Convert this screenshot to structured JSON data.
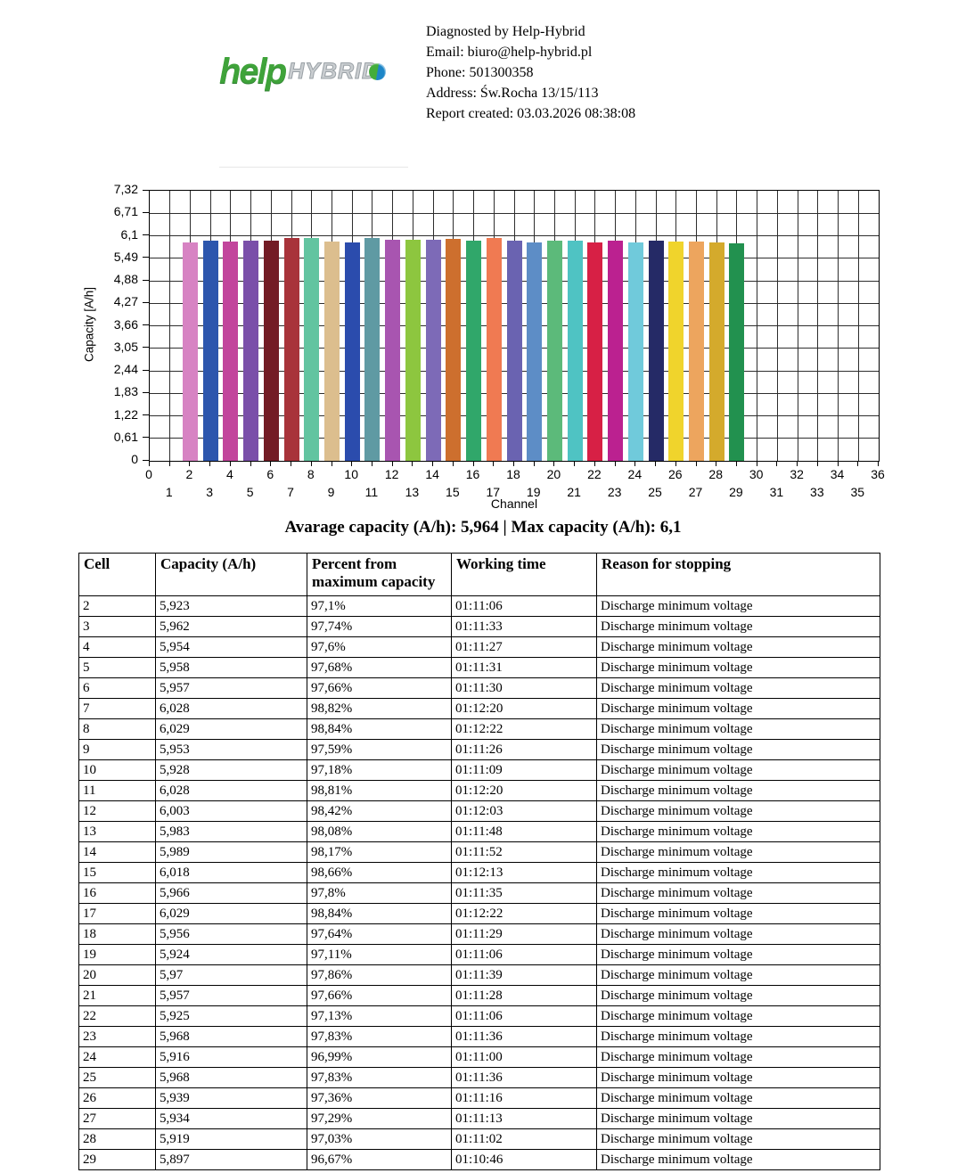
{
  "header": {
    "logo": {
      "help_text": "help",
      "hybrid_text": "HYBRID"
    },
    "info_lines": [
      "Diagnosted by Help-Hybrid",
      "Email: biuro@help-hybrid.pl",
      "Phone: 501300358",
      "Address: Św.Rocha 13/15/113",
      "Report created: 03.03.2026 08:38:08"
    ]
  },
  "chart_data": {
    "type": "bar",
    "title": "",
    "xlabel": "Channel",
    "ylabel": "Capacity [A/h]",
    "xlim": [
      0,
      36
    ],
    "ylim": [
      0,
      7.32
    ],
    "grid": true,
    "yticks": [
      "0",
      "0,61",
      "1,22",
      "1,83",
      "2,44",
      "3,05",
      "3,66",
      "4,27",
      "4,88",
      "5,49",
      "6,1",
      "6,71",
      "7,32"
    ],
    "xticks_even": [
      0,
      2,
      4,
      6,
      8,
      10,
      12,
      14,
      16,
      18,
      20,
      22,
      24,
      26,
      28,
      30,
      32,
      34,
      36
    ],
    "xticks_odd": [
      1,
      3,
      5,
      7,
      9,
      11,
      13,
      15,
      17,
      19,
      21,
      23,
      25,
      27,
      29,
      31,
      33,
      35
    ],
    "channels": [
      2,
      3,
      4,
      5,
      6,
      7,
      8,
      9,
      10,
      11,
      12,
      13,
      14,
      15,
      16,
      17,
      18,
      19,
      20,
      21,
      22,
      23,
      24,
      25,
      26,
      27,
      28,
      29
    ],
    "values": [
      5.923,
      5.962,
      5.954,
      5.958,
      5.957,
      6.028,
      6.029,
      5.953,
      5.928,
      6.028,
      6.003,
      5.983,
      5.989,
      6.018,
      5.966,
      6.029,
      5.956,
      5.924,
      5.97,
      5.957,
      5.925,
      5.968,
      5.916,
      5.968,
      5.939,
      5.934,
      5.919,
      5.897
    ],
    "bar_colors": [
      "#d783c3",
      "#2c56ad",
      "#c2459c",
      "#7a4fa9",
      "#731c25",
      "#a8333a",
      "#62c4a0",
      "#dcbe8e",
      "#2b4cad",
      "#5f9aa3",
      "#a855b0",
      "#8dc63f",
      "#7d6ab7",
      "#cd6f2e",
      "#30a76a",
      "#f07a52",
      "#6a63b1",
      "#5d8dc6",
      "#5cba7a",
      "#4fc3c3",
      "#d72045",
      "#bb2190",
      "#70cadb",
      "#252a66",
      "#f0d42c",
      "#eda55e",
      "#d4aa2c",
      "#22914f"
    ]
  },
  "summary": {
    "text": "Avarage capacity (A/h): 5,964 | Max capacity (A/h): 6,1"
  },
  "table": {
    "headers": [
      "Cell",
      "Capacity (A/h)",
      "Percent from maximum capacity",
      "Working time",
      "Reason for stopping"
    ],
    "rows": [
      [
        "2",
        "5,923",
        "97,1%",
        "01:11:06",
        "Discharge minimum voltage"
      ],
      [
        "3",
        "5,962",
        "97,74%",
        "01:11:33",
        "Discharge minimum voltage"
      ],
      [
        "4",
        "5,954",
        "97,6%",
        "01:11:27",
        "Discharge minimum voltage"
      ],
      [
        "5",
        "5,958",
        "97,68%",
        "01:11:31",
        "Discharge minimum voltage"
      ],
      [
        "6",
        "5,957",
        "97,66%",
        "01:11:30",
        "Discharge minimum voltage"
      ],
      [
        "7",
        "6,028",
        "98,82%",
        "01:12:20",
        "Discharge minimum voltage"
      ],
      [
        "8",
        "6,029",
        "98,84%",
        "01:12:22",
        "Discharge minimum voltage"
      ],
      [
        "9",
        "5,953",
        "97,59%",
        "01:11:26",
        "Discharge minimum voltage"
      ],
      [
        "10",
        "5,928",
        "97,18%",
        "01:11:09",
        "Discharge minimum voltage"
      ],
      [
        "11",
        "6,028",
        "98,81%",
        "01:12:20",
        "Discharge minimum voltage"
      ],
      [
        "12",
        "6,003",
        "98,42%",
        "01:12:03",
        "Discharge minimum voltage"
      ],
      [
        "13",
        "5,983",
        "98,08%",
        "01:11:48",
        "Discharge minimum voltage"
      ],
      [
        "14",
        "5,989",
        "98,17%",
        "01:11:52",
        "Discharge minimum voltage"
      ],
      [
        "15",
        "6,018",
        "98,66%",
        "01:12:13",
        "Discharge minimum voltage"
      ],
      [
        "16",
        "5,966",
        "97,8%",
        "01:11:35",
        "Discharge minimum voltage"
      ],
      [
        "17",
        "6,029",
        "98,84%",
        "01:12:22",
        "Discharge minimum voltage"
      ],
      [
        "18",
        "5,956",
        "97,64%",
        "01:11:29",
        "Discharge minimum voltage"
      ],
      [
        "19",
        "5,924",
        "97,11%",
        "01:11:06",
        "Discharge minimum voltage"
      ],
      [
        "20",
        "5,97",
        "97,86%",
        "01:11:39",
        "Discharge minimum voltage"
      ],
      [
        "21",
        "5,957",
        "97,66%",
        "01:11:28",
        "Discharge minimum voltage"
      ],
      [
        "22",
        "5,925",
        "97,13%",
        "01:11:06",
        "Discharge minimum voltage"
      ],
      [
        "23",
        "5,968",
        "97,83%",
        "01:11:36",
        "Discharge minimum voltage"
      ],
      [
        "24",
        "5,916",
        "96,99%",
        "01:11:00",
        "Discharge minimum voltage"
      ],
      [
        "25",
        "5,968",
        "97,83%",
        "01:11:36",
        "Discharge minimum voltage"
      ],
      [
        "26",
        "5,939",
        "97,36%",
        "01:11:16",
        "Discharge minimum voltage"
      ],
      [
        "27",
        "5,934",
        "97,29%",
        "01:11:13",
        "Discharge minimum voltage"
      ],
      [
        "28",
        "5,919",
        "97,03%",
        "01:11:02",
        "Discharge minimum voltage"
      ],
      [
        "29",
        "5,897",
        "96,67%",
        "01:10:46",
        "Discharge minimum voltage"
      ]
    ]
  }
}
